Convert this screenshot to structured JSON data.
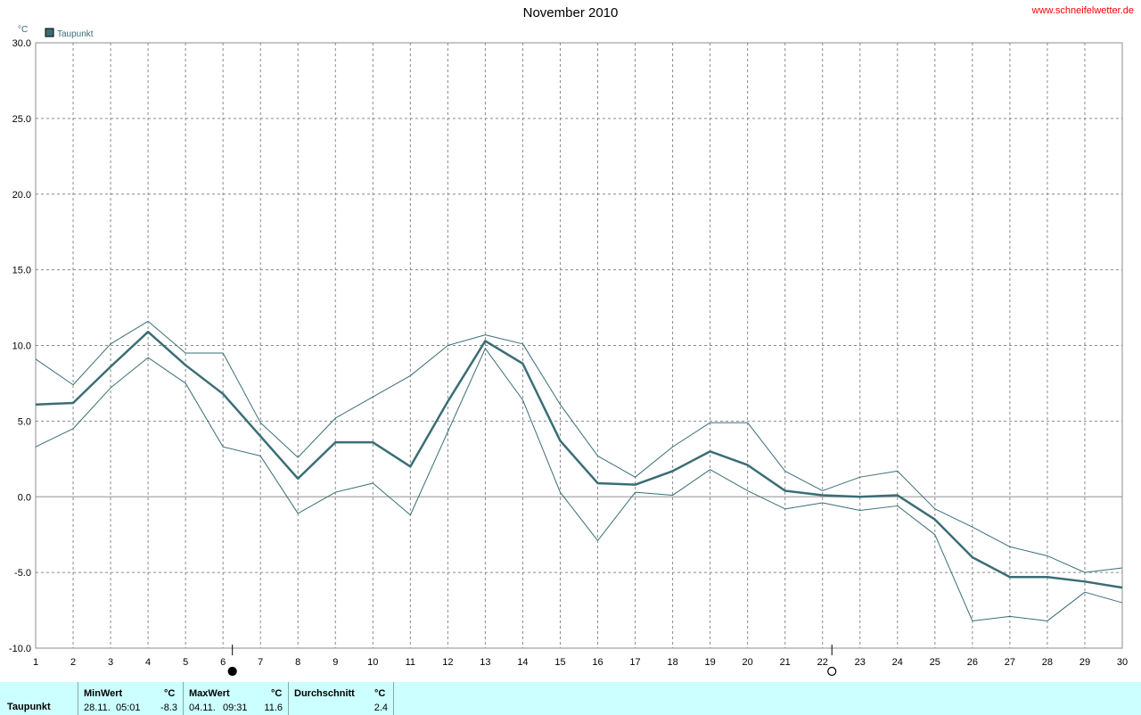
{
  "header": {
    "title": "November 2010",
    "site": "www.schneifelwetter.de",
    "unit_label": "°C"
  },
  "colors": {
    "series": "#3a6e74",
    "grid": "#8a8a8a",
    "zero_line": "#b4b4b4",
    "site_link": "#ff0000",
    "footer_bg": "#ccffff"
  },
  "chart_data": {
    "type": "line",
    "title": "November 2010",
    "ylabel": "°C",
    "legend": {
      "label": "Taupunkt",
      "placement": "top-left"
    },
    "x": [
      1,
      2,
      3,
      4,
      5,
      6,
      7,
      8,
      9,
      10,
      11,
      12,
      13,
      14,
      15,
      16,
      17,
      18,
      19,
      20,
      21,
      22,
      23,
      24,
      25,
      26,
      27,
      28,
      29,
      30
    ],
    "xlim": [
      1,
      30
    ],
    "ylim": [
      -10,
      30
    ],
    "yticks": [
      "30.0",
      "25.0",
      "20.0",
      "15.0",
      "10.0",
      "5.0",
      "0.0",
      "-5.0",
      "-10.0"
    ],
    "grid": true,
    "series": [
      {
        "name": "Taupunkt",
        "role": "mean",
        "values": [
          6.1,
          6.2,
          8.6,
          10.9,
          8.7,
          6.8,
          4.0,
          1.2,
          3.6,
          3.6,
          2.0,
          6.3,
          10.3,
          8.8,
          3.7,
          0.9,
          0.8,
          1.7,
          3.0,
          2.1,
          0.4,
          0.1,
          0.0,
          0.1,
          -1.5,
          -4.0,
          -5.3,
          -5.3,
          -5.6,
          -6.0
        ]
      },
      {
        "role": "max",
        "values": [
          9.1,
          7.4,
          10.1,
          11.6,
          9.5,
          9.5,
          4.9,
          2.6,
          5.2,
          6.6,
          8.0,
          10.0,
          10.7,
          10.1,
          6.1,
          2.7,
          1.3,
          3.3,
          4.9,
          4.9,
          1.7,
          0.4,
          1.3,
          1.7,
          -0.8,
          -2.0,
          -3.3,
          -3.9,
          -5.0,
          -4.7
        ]
      },
      {
        "role": "min",
        "values": [
          3.3,
          4.5,
          7.2,
          9.2,
          7.5,
          3.3,
          2.7,
          -1.1,
          0.3,
          0.9,
          -1.2,
          4.3,
          9.8,
          6.4,
          0.3,
          -2.9,
          0.3,
          0.1,
          1.8,
          0.4,
          -0.8,
          -0.4,
          -0.9,
          -0.6,
          -2.5,
          -8.2,
          -7.9,
          -8.2,
          -6.3,
          -7.0
        ]
      }
    ],
    "moon_markers": [
      {
        "day": 6,
        "phase": "new-moon"
      },
      {
        "day": 22,
        "phase": "full-moon"
      }
    ]
  },
  "footer": {
    "label": "Taupunkt",
    "min": {
      "header": "MinWert",
      "unit": "°C",
      "date": "28.11.",
      "time": "05:01",
      "value": "-8.3"
    },
    "max": {
      "header": "MaxWert",
      "unit": "°C",
      "date": "04.11.",
      "time": "09:31",
      "value": "11.6"
    },
    "avg": {
      "header": "Durchschnitt",
      "unit": "°C",
      "value": "2.4"
    }
  }
}
